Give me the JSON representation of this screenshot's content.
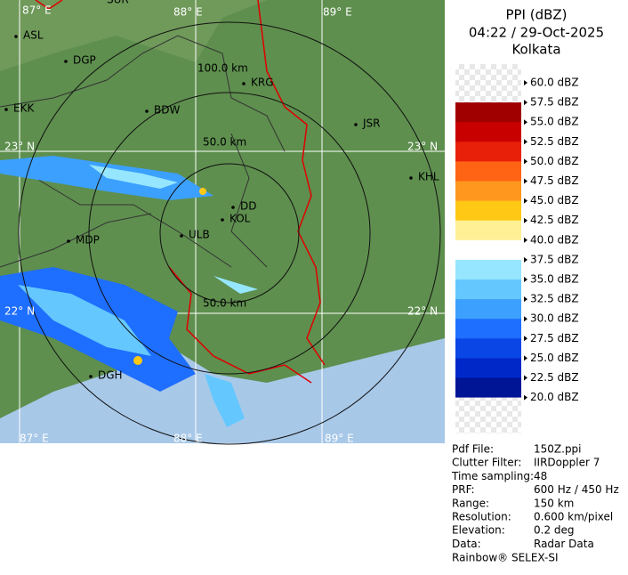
{
  "header": {
    "title": "PPI (dBZ)",
    "time": "04:22 / 29-Oct-2025",
    "site": "Kolkata"
  },
  "legend": {
    "labels": [
      "60.0 dBZ",
      "57.5 dBZ",
      "55.0 dBZ",
      "52.5 dBZ",
      "50.0 dBZ",
      "47.5 dBZ",
      "45.0 dBZ",
      "42.5 dBZ",
      "40.0 dBZ",
      "37.5 dBZ",
      "35.0 dBZ",
      "32.5 dBZ",
      "30.0 dBZ",
      "27.5 dBZ",
      "25.0 dBZ",
      "22.5 dBZ",
      "20.0 dBZ"
    ],
    "colors": [
      "#eeeeee",
      "#a00000",
      "#c80000",
      "#e8200a",
      "#ff6414",
      "#ff961e",
      "#ffc814",
      "#fff096",
      "#ffffff",
      "#96e6ff",
      "#64c8ff",
      "#3ca0ff",
      "#1e6eff",
      "#0a46e6",
      "#0028c8",
      "#001496"
    ]
  },
  "map": {
    "places": [
      "SUR",
      "ASL",
      "DGP",
      "KRG",
      "BDW",
      "JSR",
      "EKK",
      "KHL",
      "MDP",
      "DD",
      "KOL",
      "ULB",
      "DGH"
    ],
    "grid_labels": [
      "87° E",
      "88° E",
      "89° E",
      "23° N",
      "23° N",
      "22° N",
      "22° N",
      "87° E",
      "88° E",
      "89° E"
    ],
    "range_labels": [
      "100.0 km",
      "50.0 km",
      "50.0 km"
    ]
  },
  "info": {
    "rows": [
      [
        "Pdf File:",
        "150Z.ppi"
      ],
      [
        "Clutter Filter:",
        "IIRDoppler 7"
      ],
      [
        "Time sampling:",
        "48"
      ],
      [
        "PRF:",
        "600 Hz / 450 Hz"
      ],
      [
        "Range:",
        "150 km"
      ],
      [
        "Resolution:",
        "0.600 km/pixel"
      ],
      [
        "Elevation:",
        "0.2 deg"
      ],
      [
        "Data:",
        "Radar Data"
      ]
    ],
    "footer": "Rainbow® SELEX-SI"
  }
}
